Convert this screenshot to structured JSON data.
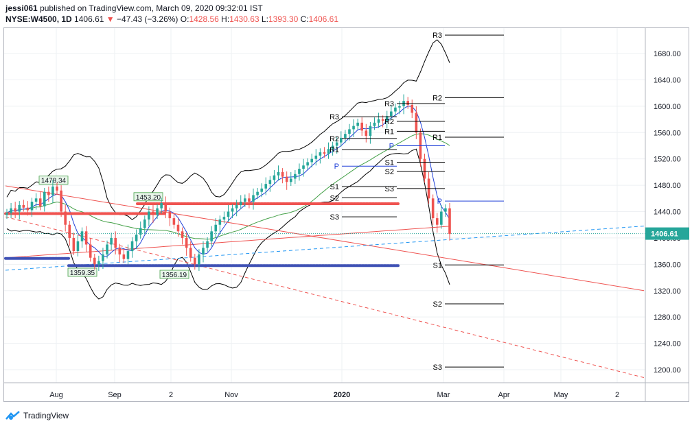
{
  "header": {
    "user": "jessi061",
    "published_text": "published on TradingView.com, March 09, 2020 09:32:01 IST",
    "symbol": "NYSE:W4500, 1D",
    "last": "1406.61",
    "change_arrow": "▼",
    "change": "−47.43 (−3.26%)",
    "o_label": "O:",
    "o_value": "1428.56",
    "h_label": "H:",
    "h_value": "1430.63",
    "l_label": "L:",
    "l_value": "1393.30",
    "c_label": "C:",
    "c_value": "1406.61"
  },
  "footer": {
    "brand": "TradingView",
    "logo_icon": "tradingview-logo-icon"
  },
  "chart_data": {
    "type": "candlestick",
    "y_ticks": [
      1200,
      1240,
      1280,
      1320,
      1360,
      1400,
      1440,
      1480,
      1520,
      1560,
      1600,
      1640,
      1680
    ],
    "y_tick_labels": [
      "1200.00",
      "1240.00",
      "1280.00",
      "1320.00",
      "1360.00",
      "1400.00",
      "1440.00",
      "1480.00",
      "1520.00",
      "1560.00",
      "1600.00",
      "1640.00",
      "1680.00"
    ],
    "ylim": [
      1180,
      1720
    ],
    "x_tick_labels": [
      "Aug",
      "Sep",
      "2",
      "Nov",
      "2020",
      "Mar",
      "Apr",
      "May",
      "2"
    ],
    "last_price": 1406.61,
    "last_price_label": "1406.61",
    "price_labels": [
      {
        "text": "1478.34",
        "value": 1478.34
      },
      {
        "text": "1453.20",
        "value": 1453.2
      },
      {
        "text": "1359.35",
        "value": 1359.35
      },
      {
        "text": "1356.19",
        "value": 1356.19
      }
    ],
    "pivot_sets": [
      {
        "levels": {
          "R3": 1584,
          "R2": 1551,
          "R1": 1534,
          "P": 1509,
          "S1": 1478,
          "S2": 1461,
          "S3": 1432
        }
      },
      {
        "levels": {
          "R3": 1604,
          "R2": 1577,
          "R1": 1562,
          "P": 1540,
          "S1": 1515,
          "S2": 1501,
          "S3": 1475
        }
      },
      {
        "levels": {
          "R3": 1708,
          "R2": 1613,
          "R1": 1553,
          "P": 1456,
          "S1": 1359,
          "S2": 1300,
          "S3": 1204
        }
      }
    ],
    "series": [
      {
        "name": "Close",
        "values": [
          1438,
          1445,
          1440,
          1450,
          1446,
          1442,
          1455,
          1460,
          1448,
          1470,
          1465,
          1478,
          1472,
          1440,
          1420,
          1400,
          1380,
          1395,
          1410,
          1390,
          1370,
          1360,
          1365,
          1375,
          1390,
          1400,
          1385,
          1375,
          1368,
          1380,
          1395,
          1405,
          1415,
          1428,
          1440,
          1435,
          1445,
          1453,
          1440,
          1430,
          1420,
          1410,
          1400,
          1385,
          1370,
          1360,
          1375,
          1385,
          1395,
          1410,
          1420,
          1428,
          1432,
          1440,
          1445,
          1450,
          1455,
          1460,
          1455,
          1465,
          1470,
          1475,
          1482,
          1488,
          1495,
          1500,
          1493,
          1485,
          1490,
          1497,
          1505,
          1510,
          1515,
          1520,
          1525,
          1530,
          1528,
          1535,
          1540,
          1545,
          1552,
          1558,
          1565,
          1570,
          1575,
          1563,
          1555,
          1570,
          1575,
          1580,
          1578,
          1585,
          1592,
          1598,
          1600,
          1608,
          1602,
          1590,
          1560,
          1520,
          1490,
          1460,
          1430,
          1420,
          1440,
          1445,
          1406
        ]
      }
    ]
  }
}
